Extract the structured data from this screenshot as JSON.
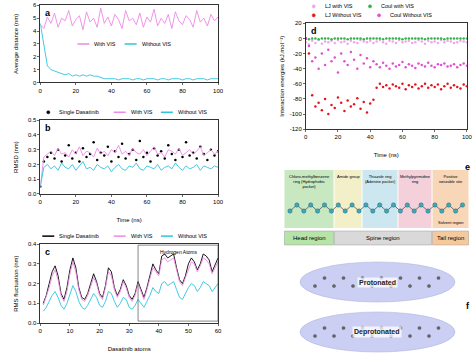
{
  "chart_data": [
    {
      "panel": "a",
      "type": "line",
      "y_label": "Average distance (nm)",
      "x": [
        0,
        2,
        4,
        6,
        8,
        10,
        12,
        14,
        16,
        18,
        20,
        22,
        24,
        26,
        28,
        30,
        32,
        34,
        36,
        38,
        40,
        42,
        44,
        46,
        48,
        50,
        52,
        54,
        56,
        58,
        60,
        62,
        64,
        66,
        68,
        70,
        72,
        74,
        76,
        78,
        80,
        82,
        84,
        86,
        88,
        90,
        92,
        94,
        96,
        98,
        100
      ],
      "xlim": [
        0,
        100
      ],
      "xticks": [
        0,
        20,
        40,
        60,
        80,
        100
      ],
      "ylim": [
        0,
        6
      ],
      "yticks": [
        0,
        1,
        2,
        3,
        4,
        5,
        6
      ],
      "grid": false,
      "legend": "center",
      "series": [
        {
          "name": "With VIS",
          "color": "#ee88e6",
          "values": [
            4.5,
            4.2,
            5.1,
            4.6,
            5.4,
            4.3,
            5.0,
            4.8,
            5.6,
            4.4,
            4.9,
            5.2,
            4.1,
            5.5,
            4.7,
            5.0,
            4.3,
            5.8,
            4.6,
            5.1,
            4.4,
            5.3,
            4.9,
            4.2,
            5.6,
            4.8,
            5.0,
            4.5,
            5.4,
            4.3,
            5.1,
            4.7,
            5.7,
            4.4,
            5.0,
            4.6,
            5.3,
            4.2,
            5.5,
            4.8,
            4.5,
            5.2,
            4.9,
            4.3,
            5.6,
            4.7,
            5.0,
            4.4,
            5.3,
            4.8,
            5.1
          ]
        },
        {
          "name": "Without VIS",
          "color": "#2fc4dc",
          "values": [
            4.6,
            2.8,
            1.3,
            1.0,
            0.9,
            0.8,
            0.7,
            0.6,
            0.7,
            0.5,
            0.6,
            0.5,
            0.6,
            0.5,
            0.6,
            0.5,
            0.5,
            0.4,
            0.3,
            0.3,
            0.3,
            0.3,
            0.2,
            0.3,
            0.3,
            0.3,
            0.2,
            0.3,
            0.3,
            0.2,
            0.3,
            0.3,
            0.3,
            0.2,
            0.3,
            0.3,
            0.2,
            0.3,
            0.3,
            0.3,
            0.2,
            0.3,
            0.3,
            0.2,
            0.3,
            0.3,
            0.3,
            0.2,
            0.3,
            0.3,
            0.3
          ]
        }
      ]
    },
    {
      "panel": "b",
      "type": "line",
      "x_label": "Time (ns)",
      "y_label": "RMSD (nm)",
      "x": [
        0,
        2,
        4,
        6,
        8,
        10,
        12,
        14,
        16,
        18,
        20,
        22,
        24,
        26,
        28,
        30,
        32,
        34,
        36,
        38,
        40,
        42,
        44,
        46,
        48,
        50,
        52,
        54,
        56,
        58,
        60,
        62,
        64,
        66,
        68,
        70,
        72,
        74,
        76,
        78,
        80,
        82,
        84,
        86,
        88,
        90,
        92,
        94,
        96,
        98,
        100
      ],
      "xlim": [
        0,
        100
      ],
      "xticks": [
        0,
        20,
        40,
        60,
        80,
        100
      ],
      "ylim": [
        0,
        0.5
      ],
      "yticks": [
        {
          "value": 0,
          "label": "0.0"
        },
        0.1,
        0.2,
        0.3,
        0.4,
        0.5
      ],
      "grid": false,
      "legend": "top",
      "series": [
        {
          "name": "Single Dasatinib",
          "color": "#000000",
          "type": "scatter",
          "marker": "circle",
          "values": [
            0.05,
            0.22,
            0.25,
            0.28,
            0.24,
            0.3,
            0.22,
            0.26,
            0.33,
            0.24,
            0.28,
            0.22,
            0.31,
            0.25,
            0.27,
            0.35,
            0.23,
            0.28,
            0.26,
            0.32,
            0.22,
            0.29,
            0.25,
            0.34,
            0.24,
            0.27,
            0.3,
            0.23,
            0.36,
            0.25,
            0.28,
            0.22,
            0.31,
            0.26,
            0.29,
            0.24,
            0.33,
            0.27,
            0.23,
            0.3,
            0.25,
            0.35,
            0.26,
            0.28,
            0.24,
            0.32,
            0.27,
            0.23,
            0.3,
            0.26,
            0.29
          ]
        },
        {
          "name": "With VIS",
          "color": "#ee88e6",
          "values": [
            0.05,
            0.25,
            0.27,
            0.29,
            0.26,
            0.31,
            0.27,
            0.28,
            0.25,
            0.3,
            0.27,
            0.32,
            0.26,
            0.29,
            0.28,
            0.25,
            0.31,
            0.27,
            0.29,
            0.26,
            0.3,
            0.28,
            0.33,
            0.27,
            0.29,
            0.26,
            0.31,
            0.28,
            0.27,
            0.3,
            0.26,
            0.29,
            0.32,
            0.27,
            0.28,
            0.25,
            0.3,
            0.29,
            0.27,
            0.31,
            0.26,
            0.28,
            0.3,
            0.27,
            0.29,
            0.32,
            0.26,
            0.28,
            0.3,
            0.27,
            0.29
          ]
        },
        {
          "name": "Without VIS",
          "color": "#2fc4dc",
          "values": [
            0.05,
            0.18,
            0.2,
            0.17,
            0.19,
            0.16,
            0.21,
            0.18,
            0.17,
            0.2,
            0.16,
            0.19,
            0.22,
            0.17,
            0.18,
            0.16,
            0.2,
            0.18,
            0.17,
            0.19,
            0.15,
            0.18,
            0.2,
            0.17,
            0.16,
            0.19,
            0.18,
            0.21,
            0.17,
            0.16,
            0.19,
            0.18,
            0.17,
            0.2,
            0.16,
            0.18,
            0.19,
            0.17,
            0.21,
            0.18,
            0.16,
            0.19,
            0.17,
            0.18,
            0.2,
            0.16,
            0.19,
            0.18,
            0.17,
            0.19,
            0.18
          ]
        }
      ]
    },
    {
      "panel": "c",
      "type": "line",
      "x_label": "Dasatinib atoms",
      "y_label": "RMS fluctuation (nm)",
      "x": [
        1,
        2,
        3,
        4,
        5,
        6,
        7,
        8,
        9,
        10,
        11,
        12,
        13,
        14,
        15,
        16,
        17,
        18,
        19,
        20,
        21,
        22,
        23,
        24,
        25,
        26,
        27,
        28,
        29,
        30,
        31,
        32,
        33,
        34,
        35,
        36,
        37,
        38,
        39,
        40,
        41,
        42,
        43,
        44,
        45,
        46,
        47,
        48,
        49,
        50,
        51,
        52,
        53,
        54,
        55,
        56,
        57,
        58,
        59,
        60
      ],
      "xlim": [
        0,
        60
      ],
      "xticks": [
        0,
        10,
        20,
        30,
        40,
        50,
        60
      ],
      "ylim": [
        0,
        0.4
      ],
      "yticks": [
        {
          "value": 0,
          "label": "0.0"
        },
        0.1,
        0.2,
        0.3,
        0.4
      ],
      "grid": false,
      "legend": "top",
      "annotations": [
        {
          "text": "Hydrogen Atoms",
          "x0": 33,
          "x1": 60
        }
      ],
      "series": [
        {
          "name": "Single Dasatinib",
          "color": "#000000",
          "values": [
            0.1,
            0.14,
            0.2,
            0.26,
            0.29,
            0.24,
            0.15,
            0.12,
            0.18,
            0.27,
            0.33,
            0.28,
            0.18,
            0.13,
            0.12,
            0.15,
            0.2,
            0.25,
            0.21,
            0.15,
            0.13,
            0.19,
            0.28,
            0.26,
            0.18,
            0.14,
            0.17,
            0.22,
            0.19,
            0.14,
            0.12,
            0.15,
            0.21,
            0.17,
            0.13,
            0.18,
            0.24,
            0.3,
            0.27,
            0.25,
            0.34,
            0.35,
            0.33,
            0.34,
            0.35,
            0.28,
            0.22,
            0.2,
            0.24,
            0.3,
            0.33,
            0.31,
            0.27,
            0.3,
            0.35,
            0.34,
            0.32,
            0.26,
            0.3,
            0.33
          ]
        },
        {
          "name": "With VIS",
          "color": "#ee88e6",
          "values": [
            0.09,
            0.13,
            0.18,
            0.24,
            0.27,
            0.22,
            0.14,
            0.11,
            0.16,
            0.25,
            0.31,
            0.26,
            0.17,
            0.12,
            0.11,
            0.14,
            0.19,
            0.23,
            0.2,
            0.14,
            0.12,
            0.18,
            0.26,
            0.24,
            0.17,
            0.13,
            0.16,
            0.21,
            0.18,
            0.13,
            0.11,
            0.14,
            0.2,
            0.16,
            0.12,
            0.17,
            0.22,
            0.28,
            0.26,
            0.24,
            0.32,
            0.33,
            0.31,
            0.32,
            0.33,
            0.27,
            0.21,
            0.19,
            0.23,
            0.28,
            0.31,
            0.3,
            0.26,
            0.29,
            0.33,
            0.32,
            0.3,
            0.25,
            0.28,
            0.31
          ]
        },
        {
          "name": "Without VIS",
          "color": "#2fc4dc",
          "values": [
            0.06,
            0.08,
            0.11,
            0.14,
            0.16,
            0.13,
            0.09,
            0.07,
            0.1,
            0.15,
            0.19,
            0.16,
            0.11,
            0.08,
            0.07,
            0.09,
            0.12,
            0.15,
            0.13,
            0.09,
            0.08,
            0.11,
            0.16,
            0.15,
            0.11,
            0.08,
            0.1,
            0.13,
            0.12,
            0.08,
            0.07,
            0.09,
            0.12,
            0.1,
            0.08,
            0.11,
            0.14,
            0.18,
            0.16,
            0.15,
            0.2,
            0.21,
            0.19,
            0.2,
            0.21,
            0.17,
            0.13,
            0.12,
            0.15,
            0.18,
            0.2,
            0.19,
            0.16,
            0.18,
            0.21,
            0.2,
            0.19,
            0.16,
            0.18,
            0.2
          ]
        }
      ]
    },
    {
      "panel": "d",
      "type": "scatter",
      "x_label": "Time (ns)",
      "y_label": "Interaction energies (kJ.mol⁻¹)",
      "x": [
        0,
        2,
        4,
        6,
        8,
        10,
        12,
        14,
        16,
        18,
        20,
        22,
        24,
        26,
        28,
        30,
        32,
        34,
        36,
        38,
        40,
        42,
        44,
        46,
        48,
        50,
        52,
        54,
        56,
        58,
        60,
        62,
        64,
        66,
        68,
        70,
        72,
        74,
        76,
        78,
        80,
        82,
        84,
        86,
        88,
        90,
        92,
        94,
        96,
        98,
        100
      ],
      "xlim": [
        0,
        100
      ],
      "xticks": [
        0,
        20,
        40,
        60,
        80,
        100
      ],
      "ylim": [
        -120,
        20
      ],
      "yticks": [
        -120,
        -100,
        -80,
        -60,
        -40,
        -20,
        0,
        20
      ],
      "grid": false,
      "legend": "top",
      "series": [
        {
          "name": "LJ with VIS",
          "color": "#f4a3ea",
          "marker": "circle",
          "values": [
            -5,
            -8,
            -3,
            -6,
            -2,
            -7,
            -4,
            -5,
            -3,
            -6,
            -2,
            -5,
            -4,
            -7,
            -3,
            -5,
            -6,
            -2,
            -4,
            -5,
            -3,
            -6,
            -4,
            -2,
            -5,
            -7,
            -3,
            -4,
            -6,
            -2,
            -5,
            -4,
            -3,
            -6,
            -5,
            -2,
            -4,
            -7,
            -3,
            -5,
            -4,
            -6,
            -2,
            -5,
            -3,
            -4,
            -6,
            -5,
            -3,
            -4,
            -5
          ]
        },
        {
          "name": "Coul with VIS",
          "color": "#33b34a",
          "marker": "circle",
          "values": [
            0,
            -1,
            0,
            0,
            -1,
            0,
            0,
            0,
            -1,
            0,
            0,
            0,
            0,
            -1,
            0,
            0,
            0,
            0,
            -1,
            0,
            0,
            0,
            0,
            0,
            -1,
            0,
            0,
            0,
            0,
            0,
            -1,
            0,
            0,
            0,
            0,
            0,
            0,
            -1,
            0,
            0,
            0,
            0,
            0,
            -1,
            0,
            0,
            0,
            0,
            0,
            0,
            0
          ]
        },
        {
          "name": "LJ Without VIS",
          "color": "#e3161d",
          "marker": "circle",
          "values": [
            0,
            -20,
            -75,
            -90,
            -85,
            -95,
            -80,
            -100,
            -88,
            -92,
            -78,
            -85,
            -96,
            -82,
            -90,
            -87,
            -79,
            -93,
            -84,
            -98,
            -86,
            -81,
            -65,
            -60,
            -64,
            -62,
            -66,
            -61,
            -63,
            -65,
            -60,
            -67,
            -62,
            -64,
            -61,
            -66,
            -63,
            -60,
            -65,
            -62,
            -64,
            -61,
            -67,
            -63,
            -60,
            -65,
            -62,
            -64,
            -66,
            -61,
            -63
          ]
        },
        {
          "name": "Coul Without VIS",
          "color": "#e24fd2",
          "marker": "circle",
          "values": [
            0,
            -10,
            -30,
            -25,
            -40,
            -20,
            -35,
            -15,
            -30,
            -25,
            -45,
            -20,
            -30,
            -35,
            -18,
            -28,
            -40,
            -22,
            -33,
            -26,
            -38,
            -30,
            -34,
            -38,
            -32,
            -36,
            -40,
            -33,
            -37,
            -35,
            -31,
            -38,
            -34,
            -36,
            -39,
            -33,
            -35,
            -37,
            -32,
            -36,
            -38,
            -34,
            -35,
            -33,
            -37,
            -36,
            -34,
            -38,
            -35,
            -33,
            -36
          ]
        }
      ]
    }
  ],
  "diagram": {
    "panel": "e",
    "groups": [
      {
        "text": "Chloro-methylbenzene ring (Hydrophobic pocket)",
        "color": "#9ad68f"
      },
      {
        "text": "Amide group",
        "color": "#e9e39c"
      },
      {
        "text": "Thiazole ring (Adenine pocket)",
        "color": "#a3d3e3"
      },
      {
        "text": "Methylpyrimidine ring",
        "color": "#eaa9bb"
      },
      {
        "text": "Positive ionizable site",
        "sub": "Solvent region",
        "color": "#f3b57e"
      }
    ],
    "regions": [
      {
        "text": "Head region"
      },
      {
        "text": "Spine region"
      },
      {
        "text": "Tail region"
      }
    ]
  },
  "surfaces": {
    "panel": "f",
    "labels": [
      "Protonated",
      "Deprotonated"
    ]
  }
}
